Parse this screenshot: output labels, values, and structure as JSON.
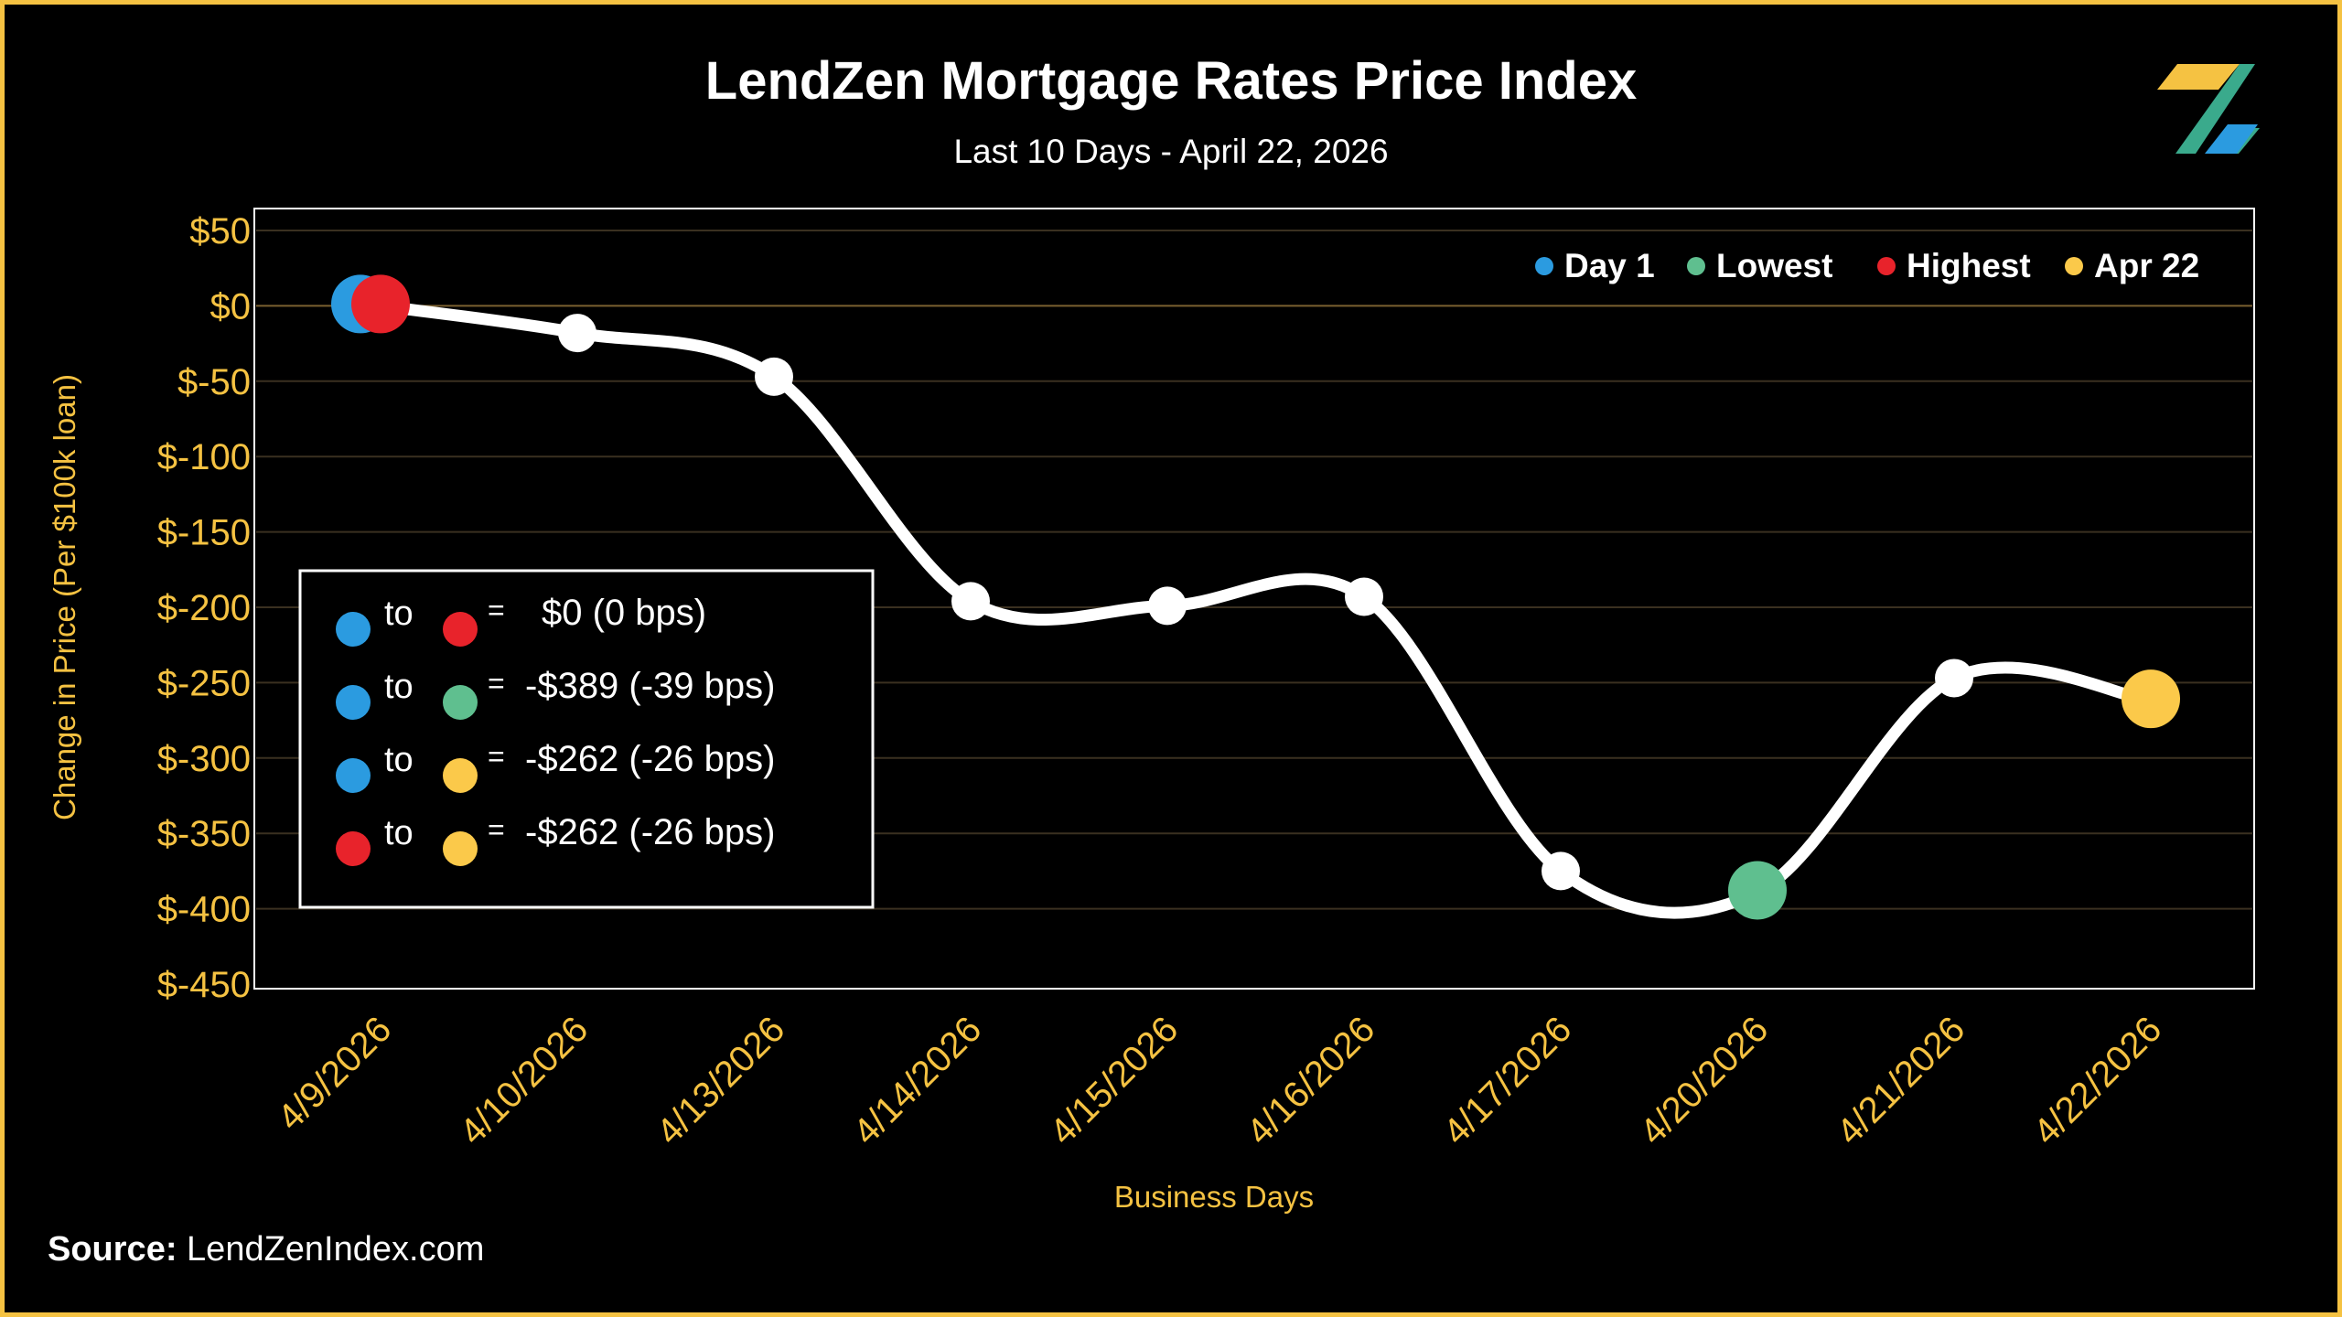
{
  "header": {
    "title": "LendZen Mortgage Rates Price Index",
    "subtitle": "Last 10 Days - April 22, 2026"
  },
  "logo": {
    "name": "lendzen-z-logo",
    "colors": [
      "#f5c242",
      "#3aaa8c",
      "#2b9be0"
    ]
  },
  "footer": {
    "source_label": "Source:",
    "source_value": "LendZenIndex.com"
  },
  "colors": {
    "background": "#000000",
    "frame": "#f5c242",
    "axis_text": "#f5c242",
    "line": "#ffffff",
    "day1": "#2b9be0",
    "lowest": "#5fbf8f",
    "highest": "#e8232b",
    "latest": "#fbc94a",
    "grid": "#3a3020",
    "zero_line": "#7a6030"
  },
  "legend": [
    {
      "label": "Day 1",
      "color": "#2b9be0"
    },
    {
      "label": "Lowest",
      "color": "#5fbf8f"
    },
    {
      "label": "Highest",
      "color": "#e8232b"
    },
    {
      "label": "Apr 22",
      "color": "#fbc94a"
    }
  ],
  "summary_box": {
    "rows": [
      {
        "from_color": "#2b9be0",
        "to_word": "to",
        "to_color": "#e8232b",
        "eq": "=",
        "value": "$0 (0 bps)"
      },
      {
        "from_color": "#2b9be0",
        "to_word": "to",
        "to_color": "#5fbf8f",
        "eq": "=",
        "value": "-$389 (-39 bps)"
      },
      {
        "from_color": "#2b9be0",
        "to_word": "to",
        "to_color": "#fbc94a",
        "eq": "=",
        "value": "-$262 (-26 bps)"
      },
      {
        "from_color": "#e8232b",
        "to_word": "to",
        "to_color": "#fbc94a",
        "eq": "=",
        "value": "-$262 (-26 bps)"
      }
    ]
  },
  "chart_data": {
    "type": "line",
    "title": "LendZen Mortgage Rates Price Index",
    "subtitle": "Last 10 Days - April 22, 2026",
    "xlabel": "Business Days",
    "ylabel": "Change in Price (Per $100k loan)",
    "categories": [
      "4/9/2026",
      "4/10/2026",
      "4/13/2026",
      "4/14/2026",
      "4/15/2026",
      "4/16/2026",
      "4/17/2026",
      "4/20/2026",
      "4/21/2026",
      "4/22/2026"
    ],
    "values": [
      0,
      -18,
      -47,
      -196,
      -199,
      -193,
      -375,
      -389,
      -247,
      -262
    ],
    "ylim": [
      -450,
      50
    ],
    "yticks": [
      50,
      0,
      -50,
      -100,
      -150,
      -200,
      -250,
      -300,
      -350,
      -400,
      -450
    ],
    "ytick_labels": [
      "$50",
      "$0",
      "$-50",
      "$-100",
      "$-150",
      "$-200",
      "$-250",
      "$-300",
      "$-350",
      "$-400",
      "$-450"
    ],
    "grid": true,
    "legend_position": "top-right",
    "highlights": [
      {
        "role": "day1",
        "index": 0
      },
      {
        "role": "highest",
        "index": 0
      },
      {
        "role": "lowest",
        "index": 7
      },
      {
        "role": "latest",
        "index": 9
      }
    ]
  }
}
